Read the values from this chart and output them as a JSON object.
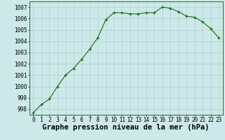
{
  "x": [
    0,
    1,
    2,
    3,
    4,
    5,
    6,
    7,
    8,
    9,
    10,
    11,
    12,
    13,
    14,
    15,
    16,
    17,
    18,
    19,
    20,
    21,
    22,
    23
  ],
  "y": [
    997.7,
    998.4,
    998.9,
    1000.0,
    1001.0,
    1001.6,
    1002.4,
    1003.3,
    1004.3,
    1005.9,
    1006.5,
    1006.5,
    1006.4,
    1006.4,
    1006.5,
    1006.5,
    1007.0,
    1006.9,
    1006.6,
    1006.2,
    1006.1,
    1005.7,
    1005.1,
    1004.3
  ],
  "xlabel": "Graphe pression niveau de la mer (hPa)",
  "ylim": [
    997.5,
    1007.5
  ],
  "xlim": [
    -0.5,
    23.5
  ],
  "yticks": [
    998,
    999,
    1000,
    1001,
    1002,
    1003,
    1004,
    1005,
    1006,
    1007
  ],
  "xticks": [
    0,
    1,
    2,
    3,
    4,
    5,
    6,
    7,
    8,
    9,
    10,
    11,
    12,
    13,
    14,
    15,
    16,
    17,
    18,
    19,
    20,
    21,
    22,
    23
  ],
  "line_color": "#1a6b1a",
  "marker": "+",
  "bg_color": "#cce8e8",
  "grid_color": "#b0d0d0",
  "xlabel_fontsize": 7.5,
  "tick_fontsize": 5.5
}
